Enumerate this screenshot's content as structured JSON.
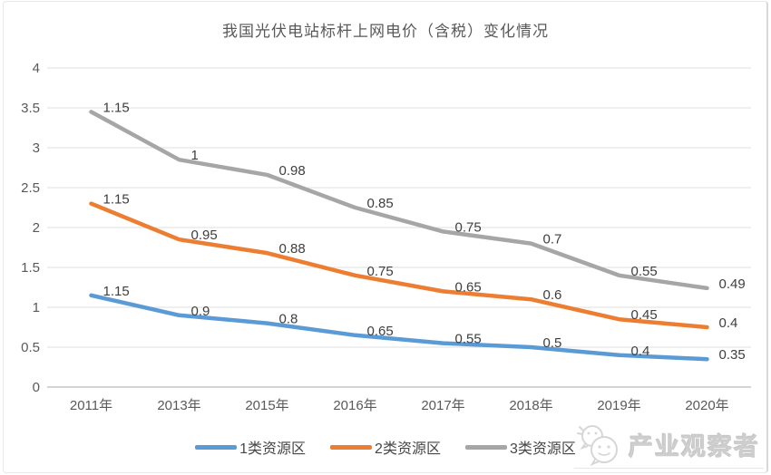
{
  "chart_data": {
    "type": "line",
    "stacked": true,
    "title": "我国光伏电站标杆上网电价（含税）变化情况",
    "categories": [
      "2011年",
      "2013年",
      "2015年",
      "2016年",
      "2017年",
      "2018年",
      "2019年",
      "2020年"
    ],
    "series": [
      {
        "name": "1类资源区",
        "color": "#5B9BD5",
        "values": [
          1.15,
          0.9,
          0.8,
          0.65,
          0.55,
          0.5,
          0.4,
          0.35
        ]
      },
      {
        "name": "2类资源区",
        "color": "#ED7D31",
        "values": [
          1.15,
          0.95,
          0.88,
          0.75,
          0.65,
          0.6,
          0.45,
          0.4
        ]
      },
      {
        "name": "3类资源区",
        "color": "#A6A6A6",
        "values": [
          1.15,
          1,
          0.98,
          0.85,
          0.75,
          0.7,
          0.55,
          0.49
        ]
      }
    ],
    "y_ticks": [
      0,
      0.5,
      1,
      1.5,
      2,
      2.5,
      3,
      3.5,
      4
    ],
    "ylim": [
      0,
      4
    ],
    "xlabel": "",
    "ylabel": "",
    "grid": true,
    "data_labels": true,
    "legend_position": "bottom",
    "note": "lines plotted as cumulative stack of series values; data labels show per-series values"
  },
  "watermark": {
    "text": "产业观察者",
    "icon": "wechat-chat-bubbles-icon"
  },
  "colors": {
    "grid": "#dfdfdf",
    "axis": "#c6c6c6",
    "tick_text": "#595959",
    "label_text": "#3e3e3e",
    "border": "#e9e9e9"
  }
}
